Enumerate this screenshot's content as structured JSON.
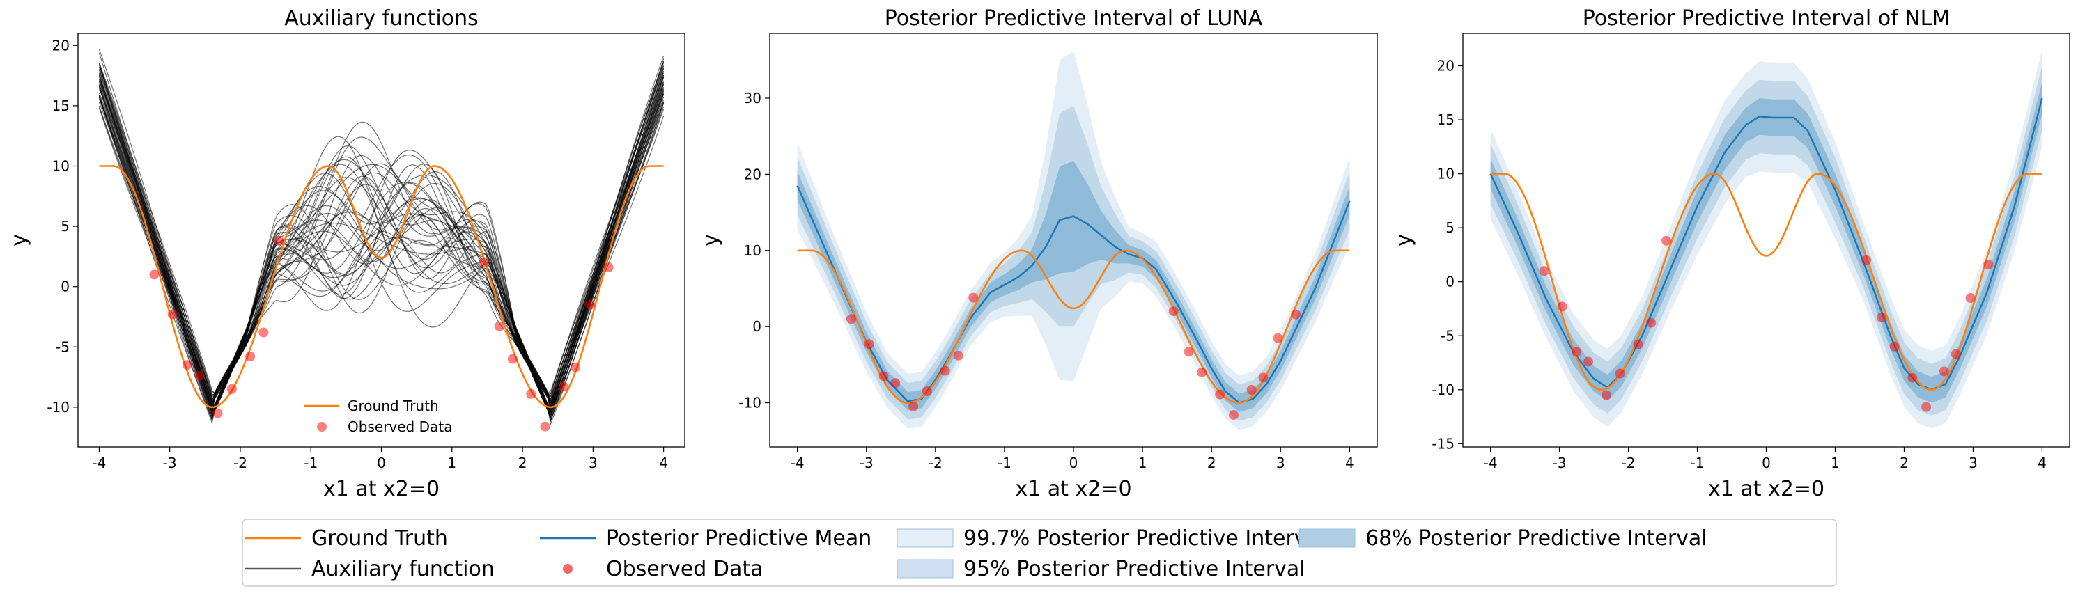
{
  "chart_data": [
    {
      "type": "line",
      "title": "Auxiliary functions",
      "xlabel": "x1 at x2=0",
      "ylabel": "y",
      "xlim": [
        -4.3,
        4.3
      ],
      "ylim": [
        -13.3,
        21.0
      ],
      "xticks": [
        -4,
        -3,
        -2,
        -1,
        0,
        1,
        2,
        3,
        4
      ],
      "yticks": [
        -10,
        -5,
        0,
        5,
        10,
        15,
        20
      ],
      "legend": {
        "placement": "lower-center",
        "entries": [
          "Ground Truth",
          "Observed Data"
        ]
      },
      "series": [
        {
          "name": "Ground Truth",
          "color": "#ff7f0e",
          "function": "ground_truth"
        },
        {
          "name": "Auxiliary function",
          "color": "#000000",
          "count": 40,
          "function": "auxiliary"
        },
        {
          "name": "Observed Data",
          "kind": "scatter",
          "color": "#ff0000",
          "x": [
            -3.22,
            -2.96,
            -2.75,
            -2.58,
            -2.32,
            -2.12,
            -1.86,
            -1.67,
            -1.45,
            1.45,
            1.67,
            1.86,
            2.12,
            2.32,
            2.58,
            2.75,
            2.96,
            3.22
          ],
          "y": [
            1.0,
            -2.3,
            -6.5,
            -7.4,
            -10.5,
            -8.5,
            -5.8,
            -3.8,
            3.8,
            2.0,
            -3.3,
            -6.0,
            -8.9,
            -11.6,
            -8.3,
            -6.7,
            -1.5,
            1.6
          ]
        }
      ]
    },
    {
      "type": "line",
      "title": "Posterior Predictive Interval of LUNA",
      "xlabel": "x1 at x2=0",
      "ylabel": "y",
      "xlim": [
        -4.4,
        4.4
      ],
      "ylim": [
        -15.8,
        38.5
      ],
      "xticks": [
        -4,
        -3,
        -2,
        -1,
        0,
        1,
        2,
        3,
        4
      ],
      "yticks": [
        -10,
        0,
        10,
        20,
        30
      ],
      "series": [
        {
          "name": "Ground Truth",
          "color": "#ff7f0e",
          "function": "ground_truth"
        },
        {
          "name": "Posterior Predictive Mean",
          "color": "#1f77b4",
          "x": [
            -4,
            -3.5,
            -3,
            -2.7,
            -2.4,
            -2.2,
            -2,
            -1.8,
            -1.5,
            -1.2,
            -1,
            -0.8,
            -0.6,
            -0.4,
            -0.2,
            0,
            0.2,
            0.4,
            0.6,
            0.8,
            1,
            1.2,
            1.5,
            1.8,
            2,
            2.2,
            2.4,
            2.6,
            2.8,
            3,
            3.5,
            4
          ],
          "y": [
            18.5,
            8.2,
            -2.0,
            -7.0,
            -9.8,
            -9.5,
            -7.0,
            -4.0,
            1.0,
            4.5,
            5.5,
            6.5,
            8.0,
            10.5,
            14.0,
            14.5,
            13.5,
            12.0,
            10.5,
            9.5,
            9.0,
            7.5,
            3.0,
            -2.0,
            -5.5,
            -8.5,
            -10.0,
            -9.5,
            -7.5,
            -4.5,
            5.0,
            16.5
          ],
          "bands": {
            "68%": {
              "lower": [
                16.6,
                6.7,
                -3.3,
                -8.2,
                -11.0,
                -10.7,
                -8.2,
                -5.2,
                -0.2,
                3.2,
                4.1,
                4.8,
                5.8,
                6.2,
                7.0,
                7.2,
                8.2,
                8.8,
                8.3,
                8.3,
                7.9,
                6.3,
                1.8,
                -3.2,
                -6.7,
                -9.7,
                -11.2,
                -10.7,
                -8.7,
                -5.8,
                3.5,
                14.6
              ],
              "upper": [
                20.4,
                9.7,
                -0.7,
                -5.8,
                -8.6,
                -8.3,
                -5.8,
                -2.8,
                2.2,
                5.8,
                6.9,
                8.2,
                10.2,
                14.8,
                21.0,
                21.8,
                18.8,
                15.2,
                12.7,
                10.7,
                10.1,
                8.7,
                4.2,
                -0.8,
                -4.3,
                -7.3,
                -8.8,
                -8.3,
                -6.3,
                -3.2,
                6.5,
                18.4
              ]
            },
            "95%": {
              "lower": [
                14.7,
                5.2,
                -4.6,
                -9.4,
                -12.2,
                -11.9,
                -9.4,
                -6.4,
                -1.4,
                1.9,
                2.7,
                3.1,
                3.6,
                1.9,
                0.0,
                0.0,
                2.9,
                5.6,
                6.1,
                7.1,
                6.8,
                5.1,
                0.6,
                -4.4,
                -7.9,
                -10.9,
                -12.4,
                -11.9,
                -9.9,
                -7.1,
                2.0,
                12.7
              ],
              "upper": [
                22.3,
                11.2,
                0.6,
                -4.6,
                -7.4,
                -7.1,
                -4.6,
                -1.6,
                3.4,
                7.1,
                8.3,
                9.9,
                12.4,
                19.1,
                28.0,
                29.0,
                24.1,
                18.4,
                14.9,
                11.9,
                11.2,
                9.9,
                5.4,
                0.4,
                -3.1,
                -6.1,
                -7.6,
                -7.1,
                -5.1,
                -1.9,
                8.0,
                20.3
              ]
            },
            "99.7%": {
              "lower": [
                12.8,
                3.7,
                -5.9,
                -10.6,
                -13.4,
                -13.1,
                -10.6,
                -7.6,
                -2.6,
                0.6,
                1.3,
                1.4,
                1.4,
                -2.4,
                -7.0,
                -7.2,
                -2.4,
                2.4,
                3.9,
                5.9,
                5.7,
                3.9,
                -0.6,
                -5.6,
                -9.1,
                -12.1,
                -13.6,
                -13.1,
                -11.1,
                -8.4,
                0.5,
                10.8
              ],
              "upper": [
                24.2,
                12.7,
                1.9,
                -3.4,
                -6.2,
                -5.9,
                -3.4,
                -0.4,
                4.6,
                8.4,
                9.7,
                11.6,
                14.6,
                23.4,
                35.0,
                36.2,
                29.4,
                21.6,
                17.1,
                13.1,
                12.3,
                11.1,
                6.6,
                1.6,
                -1.9,
                -4.9,
                -6.4,
                -5.9,
                -3.9,
                -0.6,
                9.5,
                22.2
              ]
            }
          }
        },
        {
          "name": "Observed Data",
          "kind": "scatter",
          "color": "#ff0000",
          "x": [
            -3.22,
            -2.96,
            -2.75,
            -2.58,
            -2.32,
            -2.12,
            -1.86,
            -1.67,
            -1.45,
            1.45,
            1.67,
            1.86,
            2.12,
            2.32,
            2.58,
            2.75,
            2.96,
            3.22
          ],
          "y": [
            1.0,
            -2.3,
            -6.5,
            -7.4,
            -10.5,
            -8.5,
            -5.8,
            -3.8,
            3.8,
            2.0,
            -3.3,
            -6.0,
            -8.9,
            -11.6,
            -8.3,
            -6.7,
            -1.5,
            1.6
          ]
        }
      ]
    },
    {
      "type": "line",
      "title": "Posterior Predictive Interval of NLM",
      "xlabel": "x1 at x2=0",
      "ylabel": "y",
      "xlim": [
        -4.4,
        4.4
      ],
      "ylim": [
        -15.3,
        23.0
      ],
      "xticks": [
        -4,
        -3,
        -2,
        -1,
        0,
        1,
        2,
        3,
        4
      ],
      "yticks": [
        -15,
        -10,
        -5,
        0,
        5,
        10,
        15,
        20
      ],
      "series": [
        {
          "name": "Ground Truth",
          "color": "#ff7f0e",
          "function": "ground_truth"
        },
        {
          "name": "Posterior Predictive Mean",
          "color": "#1f77b4",
          "x": [
            -4,
            -3.6,
            -3.2,
            -2.8,
            -2.5,
            -2.3,
            -2.1,
            -1.8,
            -1.4,
            -1.0,
            -0.6,
            -0.3,
            -0.1,
            0.1,
            0.4,
            0.6,
            1.0,
            1.4,
            1.8,
            2.0,
            2.2,
            2.4,
            2.6,
            2.8,
            3.2,
            3.6,
            4
          ],
          "y": [
            10.0,
            4.5,
            -1.5,
            -6.5,
            -9.0,
            -9.8,
            -8.5,
            -5.0,
            1.0,
            7.0,
            12.0,
            14.5,
            15.3,
            15.2,
            15.2,
            14.0,
            8.5,
            2.0,
            -5.0,
            -8.0,
            -9.5,
            -10.0,
            -9.5,
            -7.0,
            -1.0,
            7.0,
            17.0
          ],
          "bands": {
            "68%": {
              "lower": [
                8.6,
                3.2,
                -2.7,
                -7.7,
                -10.2,
                -11.0,
                -9.7,
                -6.2,
                -0.3,
                5.5,
                10.4,
                12.9,
                13.6,
                13.5,
                13.5,
                12.4,
                7.0,
                0.8,
                -6.2,
                -9.2,
                -10.7,
                -11.2,
                -10.7,
                -8.2,
                -2.3,
                5.6,
                15.5
              ],
              "upper": [
                11.4,
                5.8,
                -0.3,
                -5.3,
                -7.8,
                -8.6,
                -7.3,
                -3.8,
                2.3,
                8.5,
                13.6,
                16.1,
                17.0,
                16.9,
                16.9,
                15.6,
                10.0,
                3.2,
                -3.8,
                -6.8,
                -8.3,
                -8.8,
                -8.3,
                -5.8,
                0.3,
                8.4,
                18.5
              ]
            },
            "95%": {
              "lower": [
                7.2,
                1.9,
                -3.9,
                -8.9,
                -11.4,
                -12.2,
                -10.9,
                -7.4,
                -1.6,
                4.0,
                8.8,
                11.3,
                11.9,
                11.8,
                11.8,
                10.8,
                5.5,
                -0.4,
                -7.4,
                -10.4,
                -11.9,
                -12.4,
                -11.9,
                -9.4,
                -3.6,
                4.2,
                14.0
              ],
              "upper": [
                12.8,
                7.1,
                0.9,
                -4.1,
                -6.6,
                -7.4,
                -6.1,
                -2.6,
                3.6,
                10.0,
                15.2,
                17.7,
                18.7,
                18.6,
                18.6,
                17.2,
                11.5,
                4.4,
                -2.6,
                -5.6,
                -7.1,
                -7.6,
                -7.1,
                -4.6,
                1.6,
                9.8,
                20.0
              ]
            },
            "99.7%": {
              "lower": [
                5.8,
                0.6,
                -5.1,
                -10.1,
                -12.6,
                -13.4,
                -12.1,
                -8.6,
                -2.9,
                2.5,
                7.2,
                9.7,
                10.2,
                10.1,
                10.1,
                9.2,
                4.0,
                -1.6,
                -8.6,
                -11.6,
                -13.1,
                -13.6,
                -13.1,
                -10.6,
                -4.9,
                2.8,
                12.5
              ],
              "upper": [
                14.2,
                8.4,
                2.1,
                -2.9,
                -5.4,
                -6.2,
                -4.9,
                -1.4,
                4.9,
                11.5,
                16.8,
                19.3,
                20.4,
                20.3,
                20.3,
                18.8,
                13.0,
                5.6,
                -1.4,
                -4.4,
                -5.9,
                -6.4,
                -5.9,
                -3.4,
                2.9,
                11.2,
                21.5
              ]
            }
          }
        },
        {
          "name": "Observed Data",
          "kind": "scatter",
          "color": "#ff0000",
          "x": [
            -3.22,
            -2.96,
            -2.75,
            -2.58,
            -2.32,
            -2.12,
            -1.86,
            -1.67,
            -1.45,
            1.45,
            1.67,
            1.86,
            2.12,
            2.32,
            2.58,
            2.75,
            2.96,
            3.22
          ],
          "y": [
            1.0,
            -2.3,
            -6.5,
            -7.4,
            -10.5,
            -8.5,
            -5.8,
            -3.8,
            3.8,
            2.0,
            -3.3,
            -6.0,
            -8.9,
            -11.6,
            -8.3,
            -6.7,
            -1.5,
            1.6
          ]
        }
      ]
    }
  ],
  "legend_bottom": {
    "items": [
      {
        "label": "Ground Truth",
        "kind": "line",
        "color": "#ff7f0e"
      },
      {
        "label": "Auxiliary function",
        "kind": "line",
        "color": "#555555"
      },
      {
        "label": "Posterior Predictive Mean",
        "kind": "line",
        "color": "#1f77b4"
      },
      {
        "label": "Observed Data",
        "kind": "dot",
        "color": "#f06a6a"
      },
      {
        "label": "99.7% Posterior Predictive Interval",
        "kind": "patch",
        "color": "#e6eff8"
      },
      {
        "label": "95% Posterior Predictive Interval",
        "kind": "patch",
        "color": "#cddff0"
      },
      {
        "label": "68% Posterior Predictive Interval",
        "kind": "patch",
        "color": "#b0cde5"
      }
    ]
  },
  "colors": {
    "ground_truth": "#ff7f0e",
    "mean": "#1f77b4",
    "observed": "#ff0000",
    "auxiliary": "#000000"
  }
}
